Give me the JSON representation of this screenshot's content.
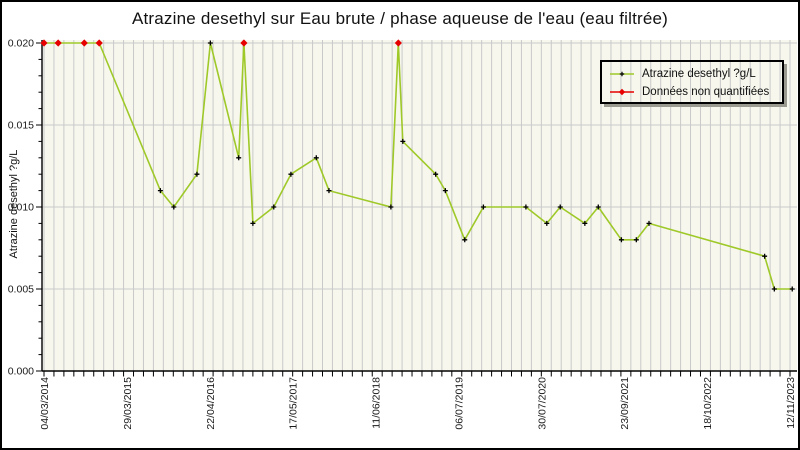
{
  "chart_data": {
    "type": "line",
    "title": "Atrazine desethyl sur Eau brute / phase aqueuse de l'eau (eau filtrée)",
    "ylabel": "Atrazine desethyl ?g/L",
    "xlabel": "",
    "ylim": [
      0.0,
      0.02
    ],
    "y_ticks": [
      "0.000",
      "0.005",
      "0.010",
      "0.015",
      "0.020"
    ],
    "y_minor_step": 0.001,
    "x_tick_labels": [
      "04/03/2014",
      "29/03/2015",
      "22/04/2016",
      "17/05/2017",
      "11/06/2018",
      "06/07/2019",
      "30/07/2020",
      "23/09/2021",
      "18/10/2022",
      "12/11/2023"
    ],
    "grid": {
      "vertical_stripes": 76,
      "horizontal_gridlines": [
        0.005,
        0.01,
        0.015,
        0.02
      ]
    },
    "legend": {
      "position": "top-right",
      "entries": [
        {
          "label": "Atrazine desethyl ?g/L",
          "marker": "black-plus",
          "line_color": "#9fc929"
        },
        {
          "label": "Données non quantifiées",
          "marker": "red-diamond",
          "line_color": "#e60000"
        }
      ]
    },
    "series": [
      {
        "name": "Atrazine desethyl ?g/L",
        "x_unit": "fraction of time axis (0 = 04/03/2014 tick, 1 = 12/11/2023 tick)",
        "points": [
          {
            "t": 0.0,
            "v": 0.02,
            "q": false
          },
          {
            "t": 0.019,
            "v": 0.02,
            "q": false
          },
          {
            "t": 0.054,
            "v": 0.02,
            "q": false
          },
          {
            "t": 0.074,
            "v": 0.02,
            "q": false
          },
          {
            "t": 0.156,
            "v": 0.011,
            "q": true
          },
          {
            "t": 0.174,
            "v": 0.01,
            "q": true
          },
          {
            "t": 0.205,
            "v": 0.012,
            "q": true
          },
          {
            "t": 0.223,
            "v": 0.02,
            "q": true
          },
          {
            "t": 0.261,
            "v": 0.013,
            "q": true
          },
          {
            "t": 0.268,
            "v": 0.02,
            "q": false
          },
          {
            "t": 0.28,
            "v": 0.009,
            "q": true
          },
          {
            "t": 0.308,
            "v": 0.01,
            "q": true
          },
          {
            "t": 0.331,
            "v": 0.012,
            "q": true
          },
          {
            "t": 0.365,
            "v": 0.013,
            "q": true
          },
          {
            "t": 0.382,
            "v": 0.011,
            "q": true
          },
          {
            "t": 0.465,
            "v": 0.01,
            "q": true
          },
          {
            "t": 0.475,
            "v": 0.02,
            "q": false
          },
          {
            "t": 0.481,
            "v": 0.014,
            "q": true
          },
          {
            "t": 0.525,
            "v": 0.012,
            "q": true
          },
          {
            "t": 0.538,
            "v": 0.011,
            "q": true
          },
          {
            "t": 0.564,
            "v": 0.008,
            "q": true
          },
          {
            "t": 0.589,
            "v": 0.01,
            "q": true
          },
          {
            "t": 0.646,
            "v": 0.01,
            "q": true
          },
          {
            "t": 0.674,
            "v": 0.009,
            "q": true
          },
          {
            "t": 0.692,
            "v": 0.01,
            "q": true
          },
          {
            "t": 0.725,
            "v": 0.009,
            "q": true
          },
          {
            "t": 0.743,
            "v": 0.01,
            "q": true
          },
          {
            "t": 0.774,
            "v": 0.008,
            "q": true
          },
          {
            "t": 0.794,
            "v": 0.008,
            "q": true
          },
          {
            "t": 0.811,
            "v": 0.009,
            "q": true
          },
          {
            "t": 0.966,
            "v": 0.007,
            "q": true
          },
          {
            "t": 0.979,
            "v": 0.005,
            "q": true
          },
          {
            "t": 1.003,
            "v": 0.005,
            "q": true
          }
        ]
      }
    ],
    "colors": {
      "series_line": "#9fc929",
      "non_quantified": "#e60000",
      "quantified_marker": "#000000",
      "plot_background": "#f7f7ee",
      "gridline": "#c9c9c9",
      "axis": "#000000",
      "text": "#1a1a1a"
    }
  }
}
